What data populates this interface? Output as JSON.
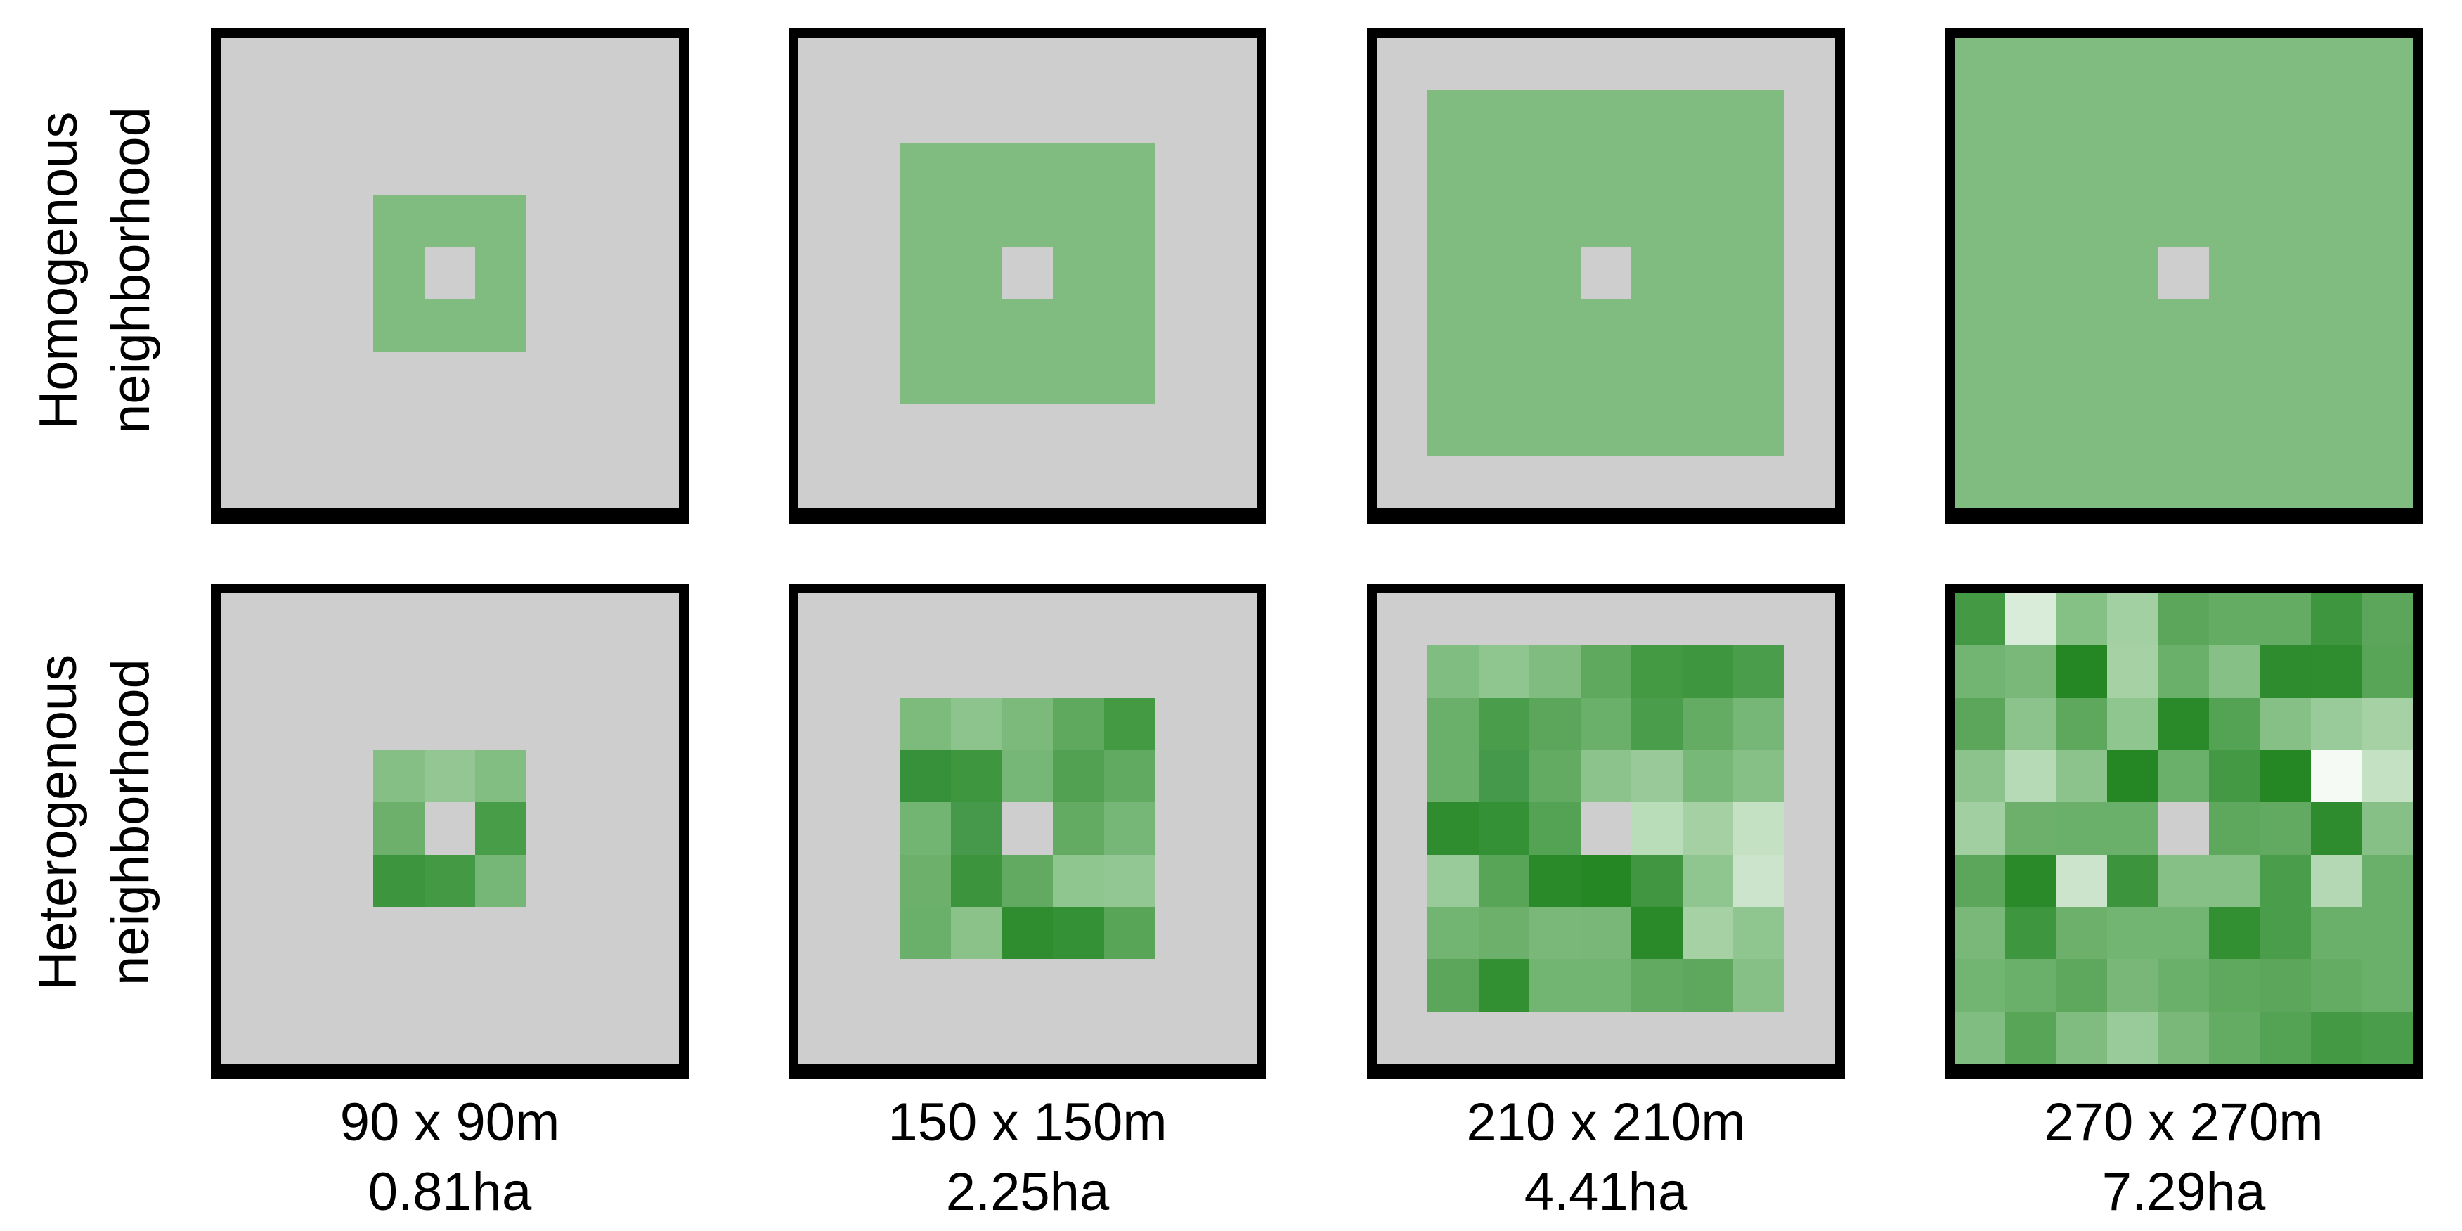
{
  "rows": [
    {
      "id": "homogenous",
      "label_line1": "Homogenous",
      "label_line2": "neighborhood"
    },
    {
      "id": "heterogenous",
      "label_line1": "Heterogenous",
      "label_line2": "neighborhood"
    }
  ],
  "columns": [
    {
      "size": "90 x 90m",
      "area": "0.81ha",
      "cells_per_side": 3
    },
    {
      "size": "150 x 150m",
      "area": "2.25ha",
      "cells_per_side": 5
    },
    {
      "size": "210 x 210m",
      "area": "4.41ha",
      "cells_per_side": 7
    },
    {
      "size": "270 x 270m",
      "area": "7.29ha",
      "cells_per_side": 9
    }
  ],
  "colors": {
    "background_gray": "#cecece",
    "homogenous_green": "#80bb80",
    "center_cell": "#cecece",
    "border": "#000000"
  },
  "heterogenous_grids": [
    [
      [
        "#85bf85",
        "#93c693",
        "#82bd82"
      ],
      [
        "#6cb06c",
        null,
        "#489d48"
      ],
      [
        "#3d953d",
        "#449a44",
        "#76b676"
      ]
    ],
    [
      [
        "#7dbb7d",
        "#8dc48d",
        "#7cba7c",
        "#5fa95f",
        "#439a43"
      ],
      [
        "#36913a",
        "#3e963e",
        "#76b676",
        "#52a152",
        "#61aa61"
      ],
      [
        "#72b472",
        "#46994a",
        null,
        "#63ab63",
        "#76b676"
      ],
      [
        "#6cb06c",
        "#3c943c",
        "#62aa62",
        "#8fc58f",
        "#92c692"
      ],
      [
        "#6ab06a",
        "#8ac28a",
        "#2f8d2f",
        "#359135",
        "#58a558"
      ]
    ],
    [
      [
        "#80bd80",
        "#8fc58f",
        "#80bc80",
        "#5fa95f",
        "#439a43",
        "#3e963e",
        "#4a9d4a"
      ],
      [
        "#6ab06a",
        "#4a9d4a",
        "#5ba65b",
        "#6ab06a",
        "#4a9d4a",
        "#64ac64",
        "#76b676"
      ],
      [
        "#6ab06a",
        "#45994a",
        "#63ab63",
        "#8cc38c",
        "#99c999",
        "#77b777",
        "#86c086"
      ],
      [
        "#2f8d2f",
        "#359135",
        "#54a354",
        null,
        "#b9dcb9",
        "#a4d0a4",
        "#c4e1c4"
      ],
      [
        "#99ca99",
        "#58a558",
        "#2a8a2a",
        "#248724",
        "#419741",
        "#8fc58f",
        "#cbe4cb"
      ],
      [
        "#72b472",
        "#6cb06c",
        "#7ab87a",
        "#78b778",
        "#2a8a2a",
        "#a5d1a5",
        "#8fc58f"
      ],
      [
        "#5ba65b",
        "#329032",
        "#72b472",
        "#72b472",
        "#62aa62",
        "#5ea85e",
        "#86c086"
      ]
    ],
    [
      [
        "#449a44",
        "#d9ecd9",
        "#85c085",
        "#a3d0a3",
        "#5ba65b",
        "#64ac64",
        "#64ac64",
        "#3e963e",
        "#5ba65b"
      ],
      [
        "#72b472",
        "#7ab87a",
        "#248724",
        "#a5d1a5",
        "#6ab06a",
        "#86c086",
        "#2e8c2e",
        "#2f8d2f",
        "#58a558"
      ],
      [
        "#5ba65b",
        "#8cc38c",
        "#5ea85e",
        "#8fc58f",
        "#2a8a2a",
        "#54a354",
        "#86c086",
        "#99ca99",
        "#a5d1a5"
      ],
      [
        "#8cc38c",
        "#b6dab6",
        "#8cc38c",
        "#248724",
        "#6ab06a",
        "#449a44",
        "#248724",
        "#f5faf5",
        "#c4e1c4"
      ],
      [
        "#a2cfa2",
        "#6cb06c",
        "#6ab06a",
        "#6ab06a",
        null,
        "#5ea85e",
        "#62aa62",
        "#2e8c2e",
        "#86c086"
      ],
      [
        "#5ba65b",
        "#2a8a2a",
        "#cbe4cb",
        "#3c943c",
        "#86c086",
        "#86c086",
        "#4a9d4a",
        "#b3d8b3",
        "#6ab06a"
      ],
      [
        "#7ab87a",
        "#3e963e",
        "#6cb06c",
        "#72b472",
        "#72b472",
        "#329032",
        "#4a9d4a",
        "#6ab06a",
        "#6ab06a"
      ],
      [
        "#72b472",
        "#6ab06a",
        "#5ea85e",
        "#78b778",
        "#6ab06a",
        "#5fa95f",
        "#5ba65b",
        "#64ac64",
        "#6ab06a"
      ],
      [
        "#80bd80",
        "#58a558",
        "#80bc80",
        "#99ca99",
        "#7ab87a",
        "#64ac64",
        "#54a354",
        "#449a44",
        "#4a9d4a"
      ]
    ]
  ]
}
